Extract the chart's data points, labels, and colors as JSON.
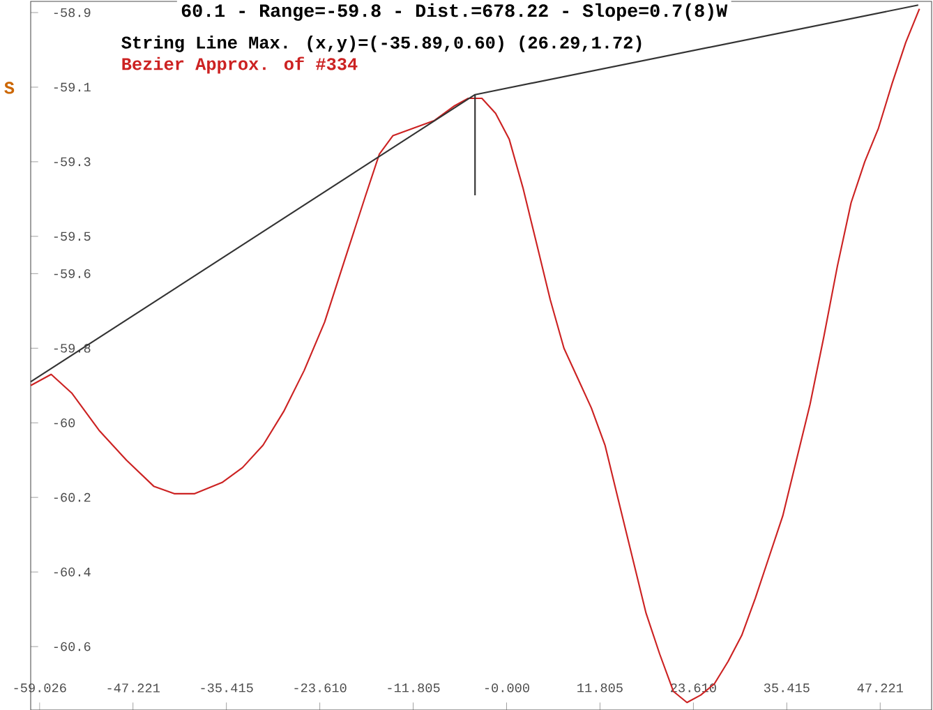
{
  "chart_data": {
    "type": "line",
    "title": "60.1 - Range=-59.8 - Dist.=678.22 - Slope=0.7(8)W",
    "annotations": [
      "String Line Max. (x,y)=(-35.89,0.60) (26.29,1.72)",
      "S"
    ],
    "xlim": [
      -60.15,
      53.72
    ],
    "ylim": [
      -60.77,
      -58.87
    ],
    "xticks": [
      -59.026,
      -47.221,
      -35.415,
      {
        "value": -23.61,
        "label": "-23.610"
      },
      -11.805,
      {
        "value": 0,
        "label": "-0.000"
      },
      11.805,
      {
        "value": 23.61,
        "label": "23.610"
      },
      35.415,
      47.221
    ],
    "yticks": [
      -60.6,
      -60.4,
      -60.2,
      -60,
      -59.8,
      -59.6,
      -59.5,
      -59.3,
      -59.1,
      -58.9
    ],
    "grid": false,
    "marker": "none",
    "series": [
      {
        "name": "Bezier Approx. of #334",
        "color": "#cc2222",
        "x": [
          -60.15,
          -57.56,
          -54.97,
          -51.51,
          -48.05,
          -44.6,
          -42.01,
          -39.42,
          -35.96,
          -33.37,
          -30.78,
          -28.18,
          -25.59,
          -23.0,
          -20.41,
          -17.81,
          -16.09,
          -14.36,
          -11.77,
          -9.17,
          -6.58,
          -4.85,
          -3.12,
          -1.39,
          0.34,
          2.07,
          3.8,
          5.52,
          7.25,
          8.98,
          10.71,
          12.44,
          14.16,
          15.89,
          17.62,
          19.35,
          21.08,
          22.8,
          24.53,
          26.26,
          27.99,
          29.72,
          31.44,
          33.17,
          34.9,
          36.63,
          38.36,
          40.09,
          41.81,
          43.54,
          45.27,
          47.0,
          48.73,
          50.45,
          52.18
        ],
        "values": [
          -59.9,
          -59.87,
          -59.92,
          -60.02,
          -60.1,
          -60.17,
          -60.19,
          -60.19,
          -60.16,
          -60.12,
          -60.06,
          -59.97,
          -59.86,
          -59.73,
          -59.56,
          -59.39,
          -59.28,
          -59.23,
          -59.21,
          -59.19,
          -59.15,
          -59.13,
          -59.13,
          -59.17,
          -59.24,
          -59.37,
          -59.52,
          -59.67,
          -59.8,
          -59.88,
          -59.96,
          -60.06,
          -60.21,
          -60.36,
          -60.51,
          -60.62,
          -60.72,
          -60.75,
          -60.73,
          -60.7,
          -60.64,
          -60.57,
          -60.47,
          -60.36,
          -60.25,
          -60.1,
          -59.95,
          -59.77,
          -59.58,
          -59.41,
          -59.3,
          -59.21,
          -59.09,
          -58.98,
          -58.89
        ]
      },
      {
        "color": "#333333",
        "x": [
          -60.15,
          -3.99,
          52.03
        ],
        "values": [
          -59.89,
          -59.12,
          -58.88
        ]
      },
      {
        "color": "#333333",
        "x": [
          -3.99,
          -3.99
        ],
        "values": [
          -59.12,
          -59.39
        ]
      }
    ]
  }
}
